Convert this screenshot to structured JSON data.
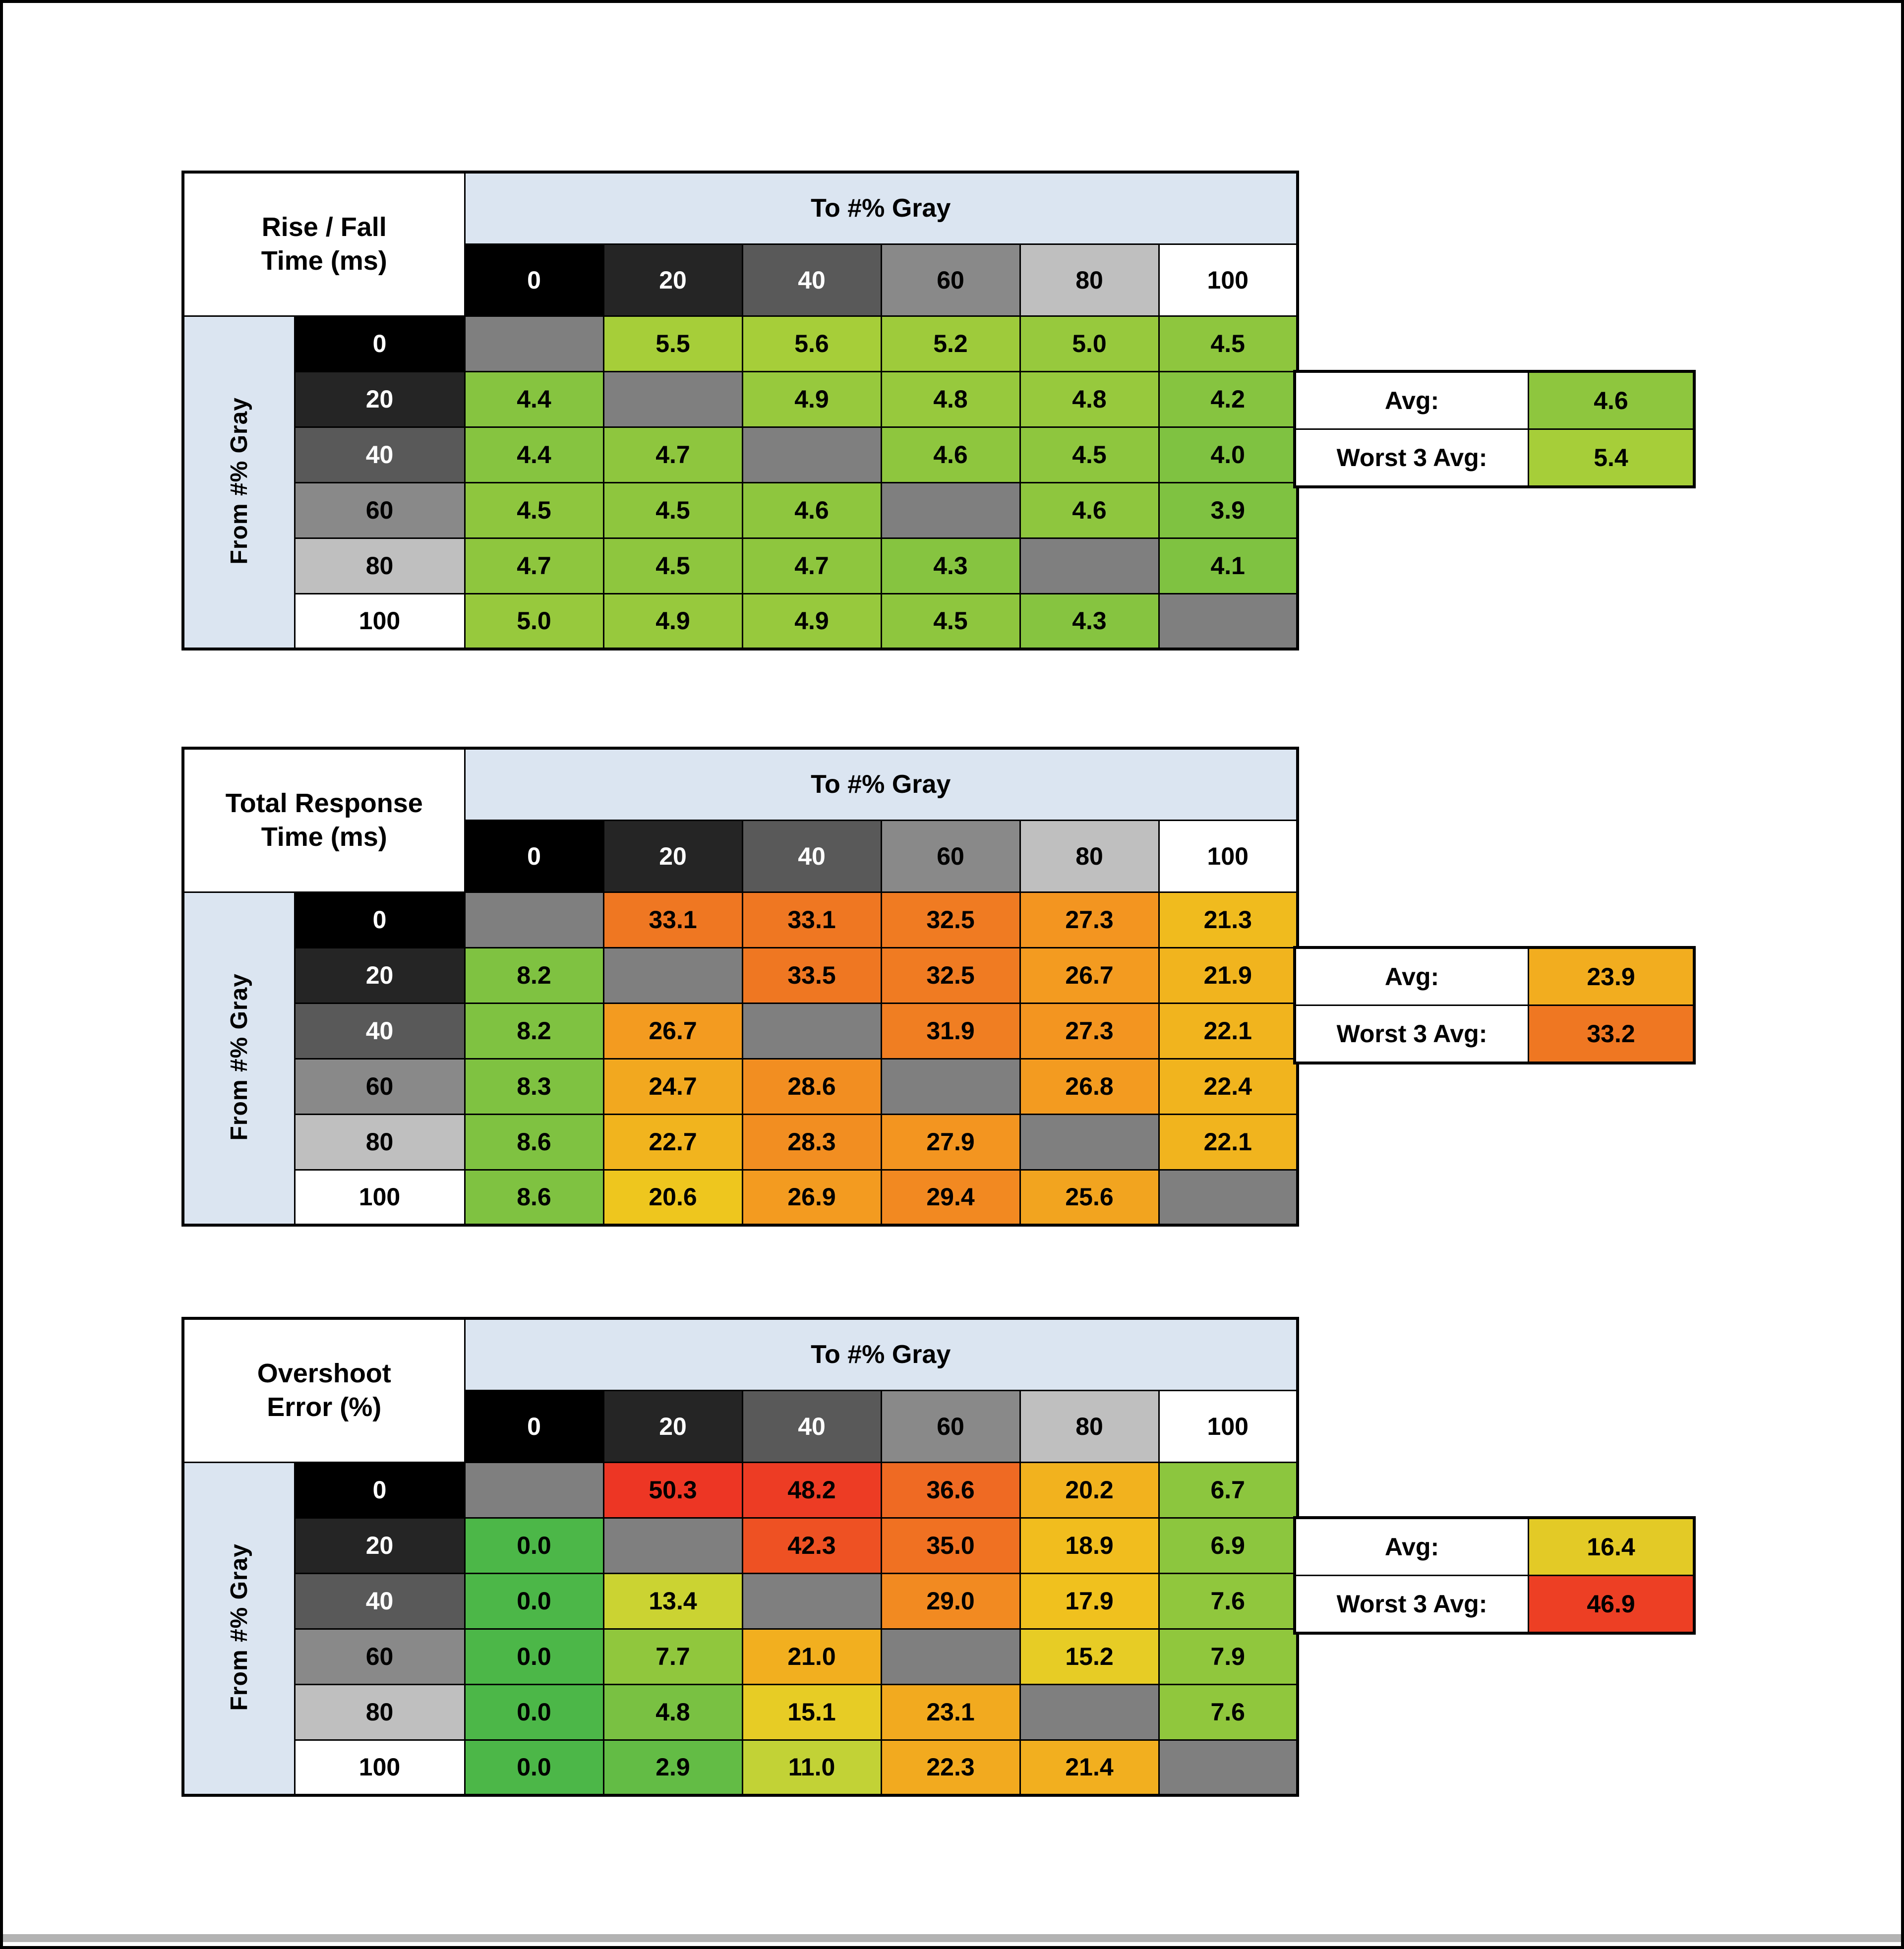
{
  "frame": {
    "background": "#ffffff",
    "border_color": "#000000",
    "bottom_strip_color": "#b3b3b3",
    "header_blue": "#dbe5f1",
    "diagonal_gray": "#7f7f7f"
  },
  "header_swatches": {
    "bg": [
      "#000000",
      "#252525",
      "#595959",
      "#898989",
      "#bfbfbf",
      "#ffffff"
    ],
    "fg": [
      "#ffffff",
      "#ffffff",
      "#ffffff",
      "#000000",
      "#000000",
      "#000000"
    ]
  },
  "chart_data": [
    {
      "type": "heatmap",
      "name": "rise-fall-time",
      "title_line1": "Rise / Fall",
      "title_line2": "Time (ms)",
      "to_label": "To #% Gray",
      "from_label": "From #% Gray",
      "col_headers": [
        "0",
        "20",
        "40",
        "60",
        "80",
        "100"
      ],
      "row_headers": [
        "0",
        "20",
        "40",
        "60",
        "80",
        "100"
      ],
      "values": [
        [
          null,
          "5.5",
          "5.6",
          "5.2",
          "5.0",
          "4.5"
        ],
        [
          "4.4",
          null,
          "4.9",
          "4.8",
          "4.8",
          "4.2"
        ],
        [
          "4.4",
          "4.7",
          null,
          "4.6",
          "4.5",
          "4.0"
        ],
        [
          "4.5",
          "4.5",
          "4.6",
          null,
          "4.6",
          "3.9"
        ],
        [
          "4.7",
          "4.5",
          "4.7",
          "4.3",
          null,
          "4.1"
        ],
        [
          "5.0",
          "4.9",
          "4.9",
          "4.5",
          "4.3",
          null
        ]
      ],
      "colors": [
        [
          null,
          "#a6ce39",
          "#a6ce39",
          "#9ecb3b",
          "#97c93d",
          "#8ec63e"
        ],
        [
          "#86c440",
          null,
          "#97c93d",
          "#97c93d",
          "#97c93d",
          "#86c440"
        ],
        [
          "#86c440",
          "#8ec63e",
          null,
          "#8ec63e",
          "#8ec63e",
          "#7fc241"
        ],
        [
          "#8ec63e",
          "#8ec63e",
          "#8ec63e",
          null,
          "#8ec63e",
          "#7fc241"
        ],
        [
          "#8ec63e",
          "#8ec63e",
          "#8ec63e",
          "#86c440",
          null,
          "#7fc241"
        ],
        [
          "#97c93d",
          "#97c93d",
          "#97c93d",
          "#8ec63e",
          "#86c440",
          null
        ]
      ],
      "summary": [
        {
          "label": "Avg:",
          "value": "4.6",
          "color": "#8ec63e"
        },
        {
          "label": "Worst 3 Avg:",
          "value": "5.4",
          "color": "#a6ce39"
        }
      ]
    },
    {
      "type": "heatmap",
      "name": "total-response-time",
      "title_line1": "Total Response",
      "title_line2": "Time (ms)",
      "to_label": "To #% Gray",
      "from_label": "From #% Gray",
      "col_headers": [
        "0",
        "20",
        "40",
        "60",
        "80",
        "100"
      ],
      "row_headers": [
        "0",
        "20",
        "40",
        "60",
        "80",
        "100"
      ],
      "values": [
        [
          null,
          "33.1",
          "33.1",
          "32.5",
          "27.3",
          "21.3"
        ],
        [
          "8.2",
          null,
          "33.5",
          "32.5",
          "26.7",
          "21.9"
        ],
        [
          "8.2",
          "26.7",
          null,
          "31.9",
          "27.3",
          "22.1"
        ],
        [
          "8.3",
          "24.7",
          "28.6",
          null,
          "26.8",
          "22.4"
        ],
        [
          "8.6",
          "22.7",
          "28.3",
          "27.9",
          null,
          "22.1"
        ],
        [
          "8.6",
          "20.6",
          "26.9",
          "29.4",
          "25.6",
          null
        ]
      ],
      "colors": [
        [
          null,
          "#ef7722",
          "#ef7722",
          "#f07b22",
          "#f39520",
          "#f0bb1e"
        ],
        [
          "#7fc241",
          null,
          "#ef7722",
          "#f07b22",
          "#f39b20",
          "#f1b41e"
        ],
        [
          "#7fc241",
          "#f39b20",
          null,
          "#f07e22",
          "#f39520",
          "#f1b41e"
        ],
        [
          "#7fc241",
          "#f2a81f",
          "#f28e21",
          null,
          "#f39b20",
          "#f1b41e"
        ],
        [
          "#7fc241",
          "#f1b41e",
          "#f28e21",
          "#f39520",
          null,
          "#f1b41e"
        ],
        [
          "#7fc241",
          "#eec61e",
          "#f39b20",
          "#f28921",
          "#f2a41f",
          null
        ]
      ],
      "summary": [
        {
          "label": "Avg:",
          "value": "23.9",
          "color": "#f2ad1f"
        },
        {
          "label": "Worst 3 Avg:",
          "value": "33.2",
          "color": "#ef7722"
        }
      ]
    },
    {
      "type": "heatmap",
      "name": "overshoot-error",
      "title_line1": "Overshoot",
      "title_line2": "Error (%)",
      "to_label": "To #% Gray",
      "from_label": "From #% Gray",
      "col_headers": [
        "0",
        "20",
        "40",
        "60",
        "80",
        "100"
      ],
      "row_headers": [
        "0",
        "20",
        "40",
        "60",
        "80",
        "100"
      ],
      "values": [
        [
          null,
          "50.3",
          "48.2",
          "36.6",
          "20.2",
          "6.7"
        ],
        [
          "0.0",
          null,
          "42.3",
          "35.0",
          "18.9",
          "6.9"
        ],
        [
          "0.0",
          "13.4",
          null,
          "29.0",
          "17.9",
          "7.6"
        ],
        [
          "0.0",
          "7.7",
          "21.0",
          null,
          "15.2",
          "7.9"
        ],
        [
          "0.0",
          "4.8",
          "15.1",
          "23.1",
          null,
          "7.6"
        ],
        [
          "0.0",
          "2.9",
          "11.0",
          "22.3",
          "21.4",
          null
        ]
      ],
      "colors": [
        [
          null,
          "#ed3624",
          "#ed3c24",
          "#ef6a23",
          "#f2b21e",
          "#8cc63e"
        ],
        [
          "#4cb748",
          null,
          "#ee5123",
          "#f07122",
          "#f1bd1e",
          "#8cc63e"
        ],
        [
          "#4cb748",
          "#cbd332",
          null,
          "#f28a21",
          "#f0c11e",
          "#90c73d"
        ],
        [
          "#4cb748",
          "#90c73d",
          "#f2af1f",
          null,
          "#e7cc25",
          "#90c73d"
        ],
        [
          "#4cb748",
          "#79c142",
          "#e7cc25",
          "#f2aa1f",
          null,
          "#90c73d"
        ],
        [
          "#4cb748",
          "#63bc45",
          "#c2d236",
          "#f2aa1f",
          "#f2af1f",
          null
        ]
      ],
      "summary": [
        {
          "label": "Avg:",
          "value": "16.4",
          "color": "#e3ca26"
        },
        {
          "label": "Worst 3 Avg:",
          "value": "46.9",
          "color": "#ed3f24"
        }
      ]
    }
  ]
}
